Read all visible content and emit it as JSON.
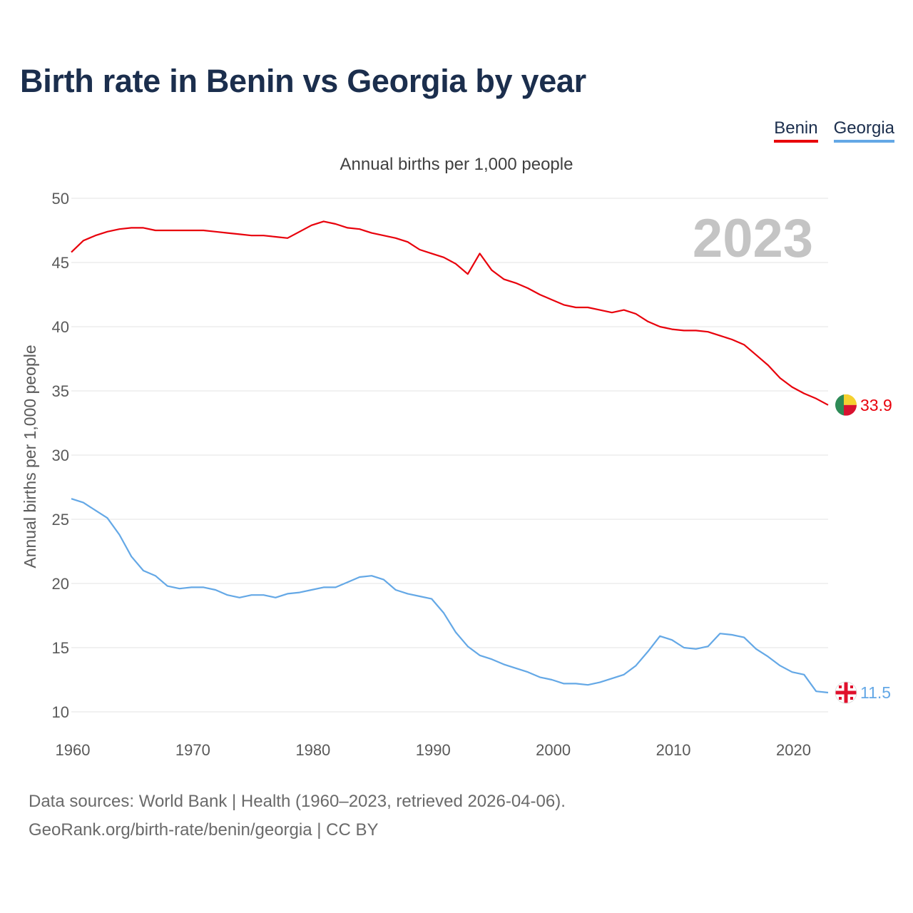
{
  "title": "Birth rate in Benin vs Georgia by year",
  "legend": [
    "Benin",
    "Georgia"
  ],
  "footer": {
    "line1": "Data sources: World Bank | Health (1960–2023, retrieved 2026-04-06).",
    "line2": "GeoRank.org/birth-rate/benin/georgia | CC BY"
  },
  "colors": {
    "benin": "#e8000b",
    "georgia": "#64a8e6"
  },
  "chart_data": {
    "type": "line",
    "title": "Birth rate in Benin vs Georgia by year",
    "subtitle": "Annual births per 1,000 people",
    "ylabel": "Annual births per 1,000 people",
    "xlabel": "",
    "year_watermark": "2023",
    "xlim": [
      1960,
      2023
    ],
    "ylim": [
      10,
      50
    ],
    "yticks": [
      10,
      15,
      20,
      25,
      30,
      35,
      40,
      45,
      50
    ],
    "xticks": [
      1960,
      1970,
      1980,
      1990,
      2000,
      2010,
      2020
    ],
    "grid": true,
    "x": [
      1960,
      1961,
      1962,
      1963,
      1964,
      1965,
      1966,
      1967,
      1968,
      1969,
      1970,
      1971,
      1972,
      1973,
      1974,
      1975,
      1976,
      1977,
      1978,
      1979,
      1980,
      1981,
      1982,
      1983,
      1984,
      1985,
      1986,
      1987,
      1988,
      1989,
      1990,
      1991,
      1992,
      1993,
      1994,
      1995,
      1996,
      1997,
      1998,
      1999,
      2000,
      2001,
      2002,
      2003,
      2004,
      2005,
      2006,
      2007,
      2008,
      2009,
      2010,
      2011,
      2012,
      2013,
      2014,
      2015,
      2016,
      2017,
      2018,
      2019,
      2020,
      2021,
      2022,
      2023
    ],
    "series": [
      {
        "name": "Benin",
        "color": "#e8000b",
        "end_label": "33.9",
        "flag_icon": "benin-flag-icon",
        "values": [
          45.8,
          46.7,
          47.1,
          47.4,
          47.6,
          47.7,
          47.7,
          47.5,
          47.5,
          47.5,
          47.5,
          47.5,
          47.4,
          47.3,
          47.2,
          47.1,
          47.1,
          47.0,
          46.9,
          47.4,
          47.9,
          48.2,
          48.0,
          47.7,
          47.6,
          47.3,
          47.1,
          46.9,
          46.6,
          46.0,
          45.7,
          45.4,
          44.9,
          44.1,
          45.7,
          44.4,
          43.7,
          43.4,
          43.0,
          42.5,
          42.1,
          41.7,
          41.5,
          41.5,
          41.3,
          41.1,
          41.3,
          41.0,
          40.4,
          40.0,
          39.8,
          39.7,
          39.7,
          39.6,
          39.3,
          39.0,
          38.6,
          37.8,
          37.0,
          36.0,
          35.3,
          34.8,
          34.4,
          33.9
        ]
      },
      {
        "name": "Georgia",
        "color": "#64a8e6",
        "end_label": "11.5",
        "flag_icon": "georgia-flag-icon",
        "values": [
          26.6,
          26.3,
          25.7,
          25.1,
          23.8,
          22.1,
          21.0,
          20.6,
          19.8,
          19.6,
          19.7,
          19.7,
          19.5,
          19.1,
          18.9,
          19.1,
          19.1,
          18.9,
          19.2,
          19.3,
          19.5,
          19.7,
          19.7,
          20.1,
          20.5,
          20.6,
          20.3,
          19.5,
          19.2,
          19.0,
          18.8,
          17.7,
          16.2,
          15.1,
          14.4,
          14.1,
          13.7,
          13.4,
          13.1,
          12.7,
          12.5,
          12.2,
          12.2,
          12.1,
          12.3,
          12.6,
          12.9,
          13.6,
          14.7,
          15.9,
          15.6,
          15.0,
          14.9,
          15.1,
          16.1,
          16.0,
          15.8,
          14.9,
          14.3,
          13.6,
          13.1,
          12.9,
          11.6,
          11.5
        ]
      }
    ]
  }
}
